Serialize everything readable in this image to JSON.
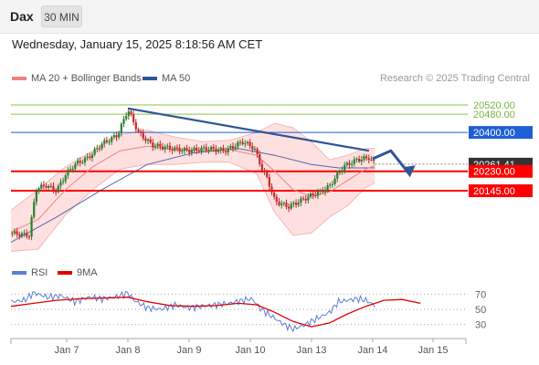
{
  "header": {
    "symbol": "Dax",
    "interval": "30 MIN",
    "timestamp": "Wednesday, January 15, 2025 8:18:56 AM CET"
  },
  "legend": {
    "ma20_label": "MA 20 + Bollinger Bands",
    "ma50_label": "MA 50",
    "copyright": "Research © 2025 Trading Central"
  },
  "rsi_legend": {
    "rsi_label": "RSI",
    "ma9_label": "9MA"
  },
  "colors": {
    "up": "#2e7d32",
    "down": "#c62828",
    "ma20": "#f08080",
    "ma50": "#2f5597",
    "band_fill": "#ffd6d6",
    "support": "#ff0000",
    "target_green": "#8bc34a",
    "resistance_blue": "#1f5fd6",
    "current": "#333333",
    "rsi": "#5b7fd6",
    "rsi_ma": "#e00000"
  },
  "chart_data": [
    {
      "type": "candlestick",
      "x_tick_labels": [
        "Jan 7",
        "Jan 8",
        "Jan 9",
        "Jan 10",
        "Jan 13",
        "Jan 14",
        "Jan 15"
      ],
      "ylim": [
        19870,
        20580
      ],
      "price_levels": [
        {
          "label": "20520.00",
          "value": 20520,
          "role": "target"
        },
        {
          "label": "20480.00",
          "value": 20480,
          "role": "target"
        },
        {
          "label": "20400.00",
          "value": 20400,
          "role": "resistance"
        },
        {
          "label": "20261.41",
          "value": 20261.41,
          "role": "current"
        },
        {
          "label": "20230.00",
          "value": 20230,
          "role": "pivot"
        },
        {
          "label": "20145.00",
          "value": 20145,
          "role": "support"
        }
      ],
      "trendline": {
        "from": [
          0.257,
          20505
        ],
        "to": [
          0.787,
          20320
        ]
      },
      "projection": {
        "path": [
          [
            0.795,
            20285
          ],
          [
            0.835,
            20320
          ],
          [
            0.875,
            20220
          ]
        ]
      },
      "close_path": [
        [
          0.0,
          19960
        ],
        [
          0.04,
          19950
        ],
        [
          0.055,
          20150
        ],
        [
          0.075,
          20170
        ],
        [
          0.1,
          20145
        ],
        [
          0.12,
          20215
        ],
        [
          0.14,
          20260
        ],
        [
          0.17,
          20290
        ],
        [
          0.2,
          20350
        ],
        [
          0.235,
          20390
        ],
        [
          0.257,
          20500
        ],
        [
          0.28,
          20400
        ],
        [
          0.31,
          20345
        ],
        [
          0.35,
          20330
        ],
        [
          0.39,
          20320
        ],
        [
          0.43,
          20330
        ],
        [
          0.47,
          20320
        ],
        [
          0.51,
          20360
        ],
        [
          0.535,
          20330
        ],
        [
          0.55,
          20250
        ],
        [
          0.565,
          20190
        ],
        [
          0.58,
          20100
        ],
        [
          0.61,
          20075
        ],
        [
          0.635,
          20100
        ],
        [
          0.66,
          20125
        ],
        [
          0.68,
          20140
        ],
        [
          0.7,
          20165
        ],
        [
          0.73,
          20250
        ],
        [
          0.76,
          20280
        ],
        [
          0.787,
          20290
        ],
        [
          0.8,
          20261
        ]
      ],
      "ma20_path": [
        [
          0.0,
          19965
        ],
        [
          0.06,
          20020
        ],
        [
          0.12,
          20150
        ],
        [
          0.18,
          20250
        ],
        [
          0.24,
          20320
        ],
        [
          0.3,
          20340
        ],
        [
          0.36,
          20325
        ],
        [
          0.42,
          20320
        ],
        [
          0.48,
          20325
        ],
        [
          0.54,
          20300
        ],
        [
          0.58,
          20230
        ],
        [
          0.62,
          20150
        ],
        [
          0.66,
          20120
        ],
        [
          0.7,
          20140
        ],
        [
          0.74,
          20190
        ],
        [
          0.78,
          20240
        ],
        [
          0.8,
          20255
        ]
      ],
      "ma50_path": [
        [
          0.0,
          19920
        ],
        [
          0.1,
          20030
        ],
        [
          0.2,
          20150
        ],
        [
          0.3,
          20260
        ],
        [
          0.4,
          20310
        ],
        [
          0.5,
          20330
        ],
        [
          0.58,
          20300
        ],
        [
          0.66,
          20260
        ],
        [
          0.72,
          20245
        ],
        [
          0.8,
          20245
        ]
      ],
      "bb_upper": [
        [
          0.0,
          20060
        ],
        [
          0.06,
          20150
        ],
        [
          0.12,
          20250
        ],
        [
          0.18,
          20320
        ],
        [
          0.24,
          20390
        ],
        [
          0.3,
          20410
        ],
        [
          0.36,
          20380
        ],
        [
          0.42,
          20360
        ],
        [
          0.48,
          20365
        ],
        [
          0.54,
          20400
        ],
        [
          0.58,
          20440
        ],
        [
          0.62,
          20420
        ],
        [
          0.66,
          20360
        ],
        [
          0.7,
          20280
        ],
        [
          0.74,
          20300
        ],
        [
          0.78,
          20330
        ],
        [
          0.8,
          20330
        ]
      ],
      "bb_lower": [
        [
          0.0,
          19880
        ],
        [
          0.06,
          19890
        ],
        [
          0.12,
          20040
        ],
        [
          0.18,
          20150
        ],
        [
          0.24,
          20240
        ],
        [
          0.3,
          20260
        ],
        [
          0.36,
          20260
        ],
        [
          0.42,
          20270
        ],
        [
          0.48,
          20270
        ],
        [
          0.54,
          20220
        ],
        [
          0.58,
          20050
        ],
        [
          0.62,
          19950
        ],
        [
          0.66,
          19960
        ],
        [
          0.7,
          20030
        ],
        [
          0.74,
          20080
        ],
        [
          0.78,
          20160
        ],
        [
          0.8,
          20180
        ]
      ]
    },
    {
      "type": "line",
      "title": "RSI",
      "y_tick_labels": [
        "70",
        "50",
        "30"
      ],
      "ylim": [
        15,
        85
      ],
      "reference_levels": [
        70,
        50,
        30
      ],
      "series": [
        {
          "name": "RSI",
          "values": [
            [
              0.0,
              60
            ],
            [
              0.03,
              62
            ],
            [
              0.05,
              72
            ],
            [
              0.08,
              66
            ],
            [
              0.11,
              68
            ],
            [
              0.14,
              60
            ],
            [
              0.17,
              66
            ],
            [
              0.2,
              64
            ],
            [
              0.23,
              66
            ],
            [
              0.257,
              72
            ],
            [
              0.27,
              62
            ],
            [
              0.3,
              52
            ],
            [
              0.33,
              50
            ],
            [
              0.36,
              56
            ],
            [
              0.39,
              52
            ],
            [
              0.42,
              54
            ],
            [
              0.45,
              56
            ],
            [
              0.48,
              58
            ],
            [
              0.51,
              62
            ],
            [
              0.53,
              64
            ],
            [
              0.55,
              50
            ],
            [
              0.575,
              40
            ],
            [
              0.6,
              30
            ],
            [
              0.62,
              24
            ],
            [
              0.64,
              28
            ],
            [
              0.66,
              34
            ],
            [
              0.68,
              40
            ],
            [
              0.7,
              46
            ],
            [
              0.72,
              60
            ],
            [
              0.74,
              62
            ],
            [
              0.76,
              64
            ],
            [
              0.78,
              62
            ],
            [
              0.8,
              55
            ]
          ]
        },
        {
          "name": "9MA",
          "values": [
            [
              0.0,
              54
            ],
            [
              0.05,
              58
            ],
            [
              0.1,
              62
            ],
            [
              0.15,
              64
            ],
            [
              0.2,
              65
            ],
            [
              0.257,
              66
            ],
            [
              0.3,
              60
            ],
            [
              0.35,
              55
            ],
            [
              0.4,
              54
            ],
            [
              0.45,
              55
            ],
            [
              0.5,
              58
            ],
            [
              0.54,
              56
            ],
            [
              0.58,
              46
            ],
            [
              0.62,
              34
            ],
            [
              0.66,
              27
            ],
            [
              0.7,
              32
            ],
            [
              0.74,
              44
            ],
            [
              0.78,
              54
            ],
            [
              0.82,
              62
            ],
            [
              0.86,
              63
            ],
            [
              0.9,
              58
            ]
          ]
        }
      ]
    }
  ]
}
